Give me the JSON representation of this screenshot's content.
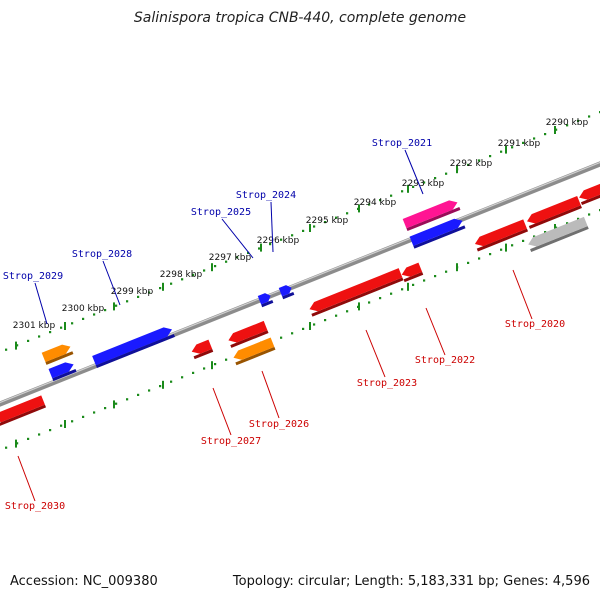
{
  "title": "Salinispora tropica CNB-440, complete genome",
  "footer": {
    "accession": "Accession: NC_009380",
    "summary": "Topology: circular; Length: 5,183,331 bp; Genes: 4,596"
  },
  "colors": {
    "forward_label": "#0000aa",
    "reverse_label": "#cc0000",
    "ruler_ticks": "#1a8a1a",
    "backbone": "#8c8c8c"
  },
  "kbp_ticks": [
    {
      "label": "2290 kbp"
    },
    {
      "label": "2291 kbp"
    },
    {
      "label": "2292 kbp"
    },
    {
      "label": "2293 kbp"
    },
    {
      "label": "2294 kbp"
    },
    {
      "label": "2295 kbp"
    },
    {
      "label": "2296 kbp"
    },
    {
      "label": "2297 kbp"
    },
    {
      "label": "2298 kbp"
    },
    {
      "label": "2299 kbp"
    },
    {
      "label": "2300 kbp"
    },
    {
      "label": "2301 kbp"
    }
  ],
  "forward_genes": [
    {
      "label": "Strop_2021",
      "color": "#1a1aff"
    },
    {
      "label": "Strop_2024",
      "color": "#1a1aff"
    },
    {
      "label": "Strop_2025",
      "color": "#1a1aff"
    },
    {
      "label": "Strop_2028",
      "color": "#1a1aff"
    },
    {
      "label": "Strop_2029",
      "color": "#1a1aff"
    },
    {
      "label": "",
      "color": "#ff1493"
    },
    {
      "label": "",
      "color": "#ff8c00"
    }
  ],
  "reverse_genes": [
    {
      "label": "Strop_2020",
      "color": "#ee1111"
    },
    {
      "label": "Strop_2022",
      "color": "#ee1111"
    },
    {
      "label": "Strop_2023",
      "color": "#ee1111"
    },
    {
      "label": "Strop_2026",
      "color": "#ff8c00"
    },
    {
      "label": "Strop_2027",
      "color": "#ee1111"
    },
    {
      "label": "Strop_2030",
      "color": "#ee1111"
    },
    {
      "label": "",
      "color": "#bbbbbb"
    }
  ]
}
